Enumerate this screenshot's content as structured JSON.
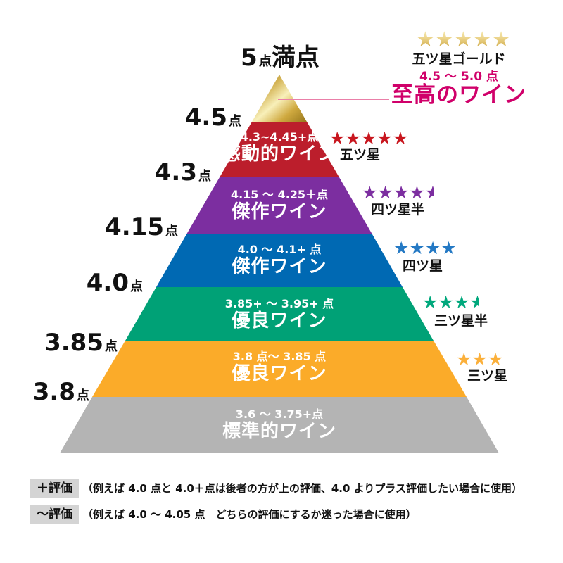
{
  "figure": {
    "subject": "wine rating pyramid",
    "max_score_label": {
      "value": "5",
      "unit": "点",
      "suffix": "満点"
    }
  },
  "pyramid": {
    "tiers": [
      {
        "id": "supreme",
        "range": "4.5 ～ 5.0 点",
        "name": "至高のワイン",
        "color": "gold-gradient",
        "star_label": "五ツ星ゴールド",
        "stars": 5,
        "half": false,
        "star_color": "gold-gradient"
      },
      {
        "id": "kandoteki",
        "range": "4.3~4.45+点",
        "name": "感動的ワイン",
        "color": "#bc1e2c",
        "star_label": "五ツ星",
        "stars": 5,
        "half": false,
        "star_color": "#c8161e"
      },
      {
        "id": "kessaku-upper",
        "range": "4.15 ～ 4.25＋点",
        "name": "傑作ワイン",
        "color": "#7c2ea0",
        "star_label": "四ツ星半",
        "stars": 4,
        "half": true,
        "star_color": "#7c2ea0"
      },
      {
        "id": "kessaku-lower",
        "range": "4.0 ～ 4.1+ 点",
        "name": "傑作ワイン",
        "color": "#0069b3",
        "star_label": "四ツ星",
        "stars": 4,
        "half": false,
        "star_color": "#2479c4"
      },
      {
        "id": "yuryo-upper",
        "range": "3.85+ ～ 3.95+ 点",
        "name": "優良ワイン",
        "color": "#00a176",
        "star_label": "三ツ星半",
        "stars": 3,
        "half": true,
        "star_color": "#00a87c"
      },
      {
        "id": "yuryo-lower",
        "range": "3.8 点～ 3.85 点",
        "name": "優良ワイン",
        "color": "#fbab29",
        "star_label": "三ツ星",
        "stars": 3,
        "half": false,
        "star_color": "#fbb03b"
      },
      {
        "id": "standard",
        "range": "3.6 ～ 3.75+点",
        "name": "標準的ワイン",
        "color": "#b4b4b4",
        "star_label": null,
        "stars": null,
        "half": false,
        "star_color": null
      }
    ],
    "axis_labels": [
      {
        "value": "4.5",
        "unit": "点"
      },
      {
        "value": "4.3",
        "unit": "点"
      },
      {
        "value": "4.15",
        "unit": "点"
      },
      {
        "value": "4.0",
        "unit": "点"
      },
      {
        "value": "3.85",
        "unit": "点"
      },
      {
        "value": "3.8",
        "unit": "点"
      }
    ]
  },
  "legend": [
    {
      "badge": "＋評価",
      "text": "（例えば 4.0 点と 4.0＋点は後者の方が上の評価、4.0 よりプラス評価したい場合に使用）"
    },
    {
      "badge": "～評価",
      "text": "（例えば 4.0 ～ 4.05 点　どちらの評価にするか迷った場合に使用）"
    }
  ],
  "colors": {
    "supreme_pink": "#d0006a",
    "connector_pink": "#ea7fa8",
    "badge_bg": "#d4d4d4",
    "text": "#111111",
    "white": "#ffffff"
  }
}
